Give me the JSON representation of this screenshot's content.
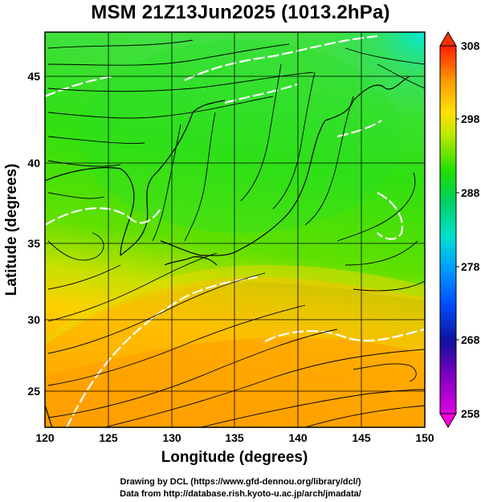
{
  "title": "MSM 21Z13Jun2025 (1013.2hPa)",
  "map": {
    "x_axis_label": "Longitude (degrees)",
    "y_axis_label": "Latitude  (degrees)",
    "lon_range": [
      120,
      150
    ],
    "lat_range": [
      22.5,
      47.6
    ],
    "lon_ticks": [
      "120",
      "125",
      "130",
      "135",
      "140",
      "145",
      "150"
    ],
    "lat_ticks": [
      "25",
      "30",
      "35",
      "40",
      "45"
    ],
    "grid": true,
    "field": "temperature (K), streamlines of wind",
    "colors": {
      "cold": "#00e0e0",
      "cool": "#00e020",
      "mild": "#a8e000",
      "warm": "#ffb000",
      "hot": "#ff7000"
    }
  },
  "colorbar": {
    "ticks": [
      "308",
      "298",
      "288",
      "278",
      "268",
      "258"
    ],
    "min": 258,
    "max": 308
  },
  "footer": {
    "line1": "Drawing by DCL (https://www.gfd-dennou.org/library/dcl/)",
    "line2": "Data from http://database.rish.kyoto-u.ac.jp/arch/jmadata/"
  }
}
